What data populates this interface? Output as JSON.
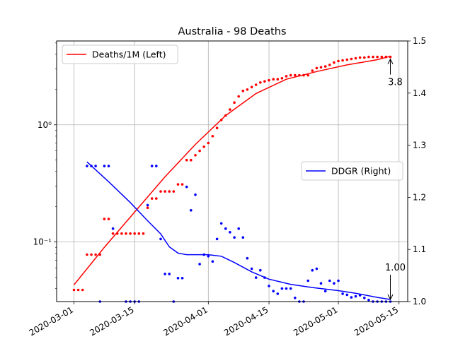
{
  "chart_data": {
    "type": "line",
    "title": "Australia - 98 Deaths",
    "xlabel": "",
    "ylabel_left": "",
    "ylabel_right": "",
    "grid": true,
    "x_axis": {
      "ticks": [
        "2020-03-01",
        "2020-03-15",
        "2020-04-01",
        "2020-04-15",
        "2020-05-01",
        "2020-05-15"
      ]
    },
    "y_left": {
      "scale": "log",
      "ylim": [
        0.031,
        5.2
      ],
      "ticks": [
        {
          "value": 0.1,
          "label": "10⁻¹"
        },
        {
          "value": 1,
          "label": "10⁰"
        }
      ]
    },
    "y_right": {
      "scale": "linear",
      "ylim": [
        1.0,
        1.5
      ],
      "ticks": [
        "1.0",
        "1.1",
        "1.2",
        "1.3",
        "1.4",
        "1.5"
      ]
    },
    "legends": [
      {
        "label": "Deaths/1M (Left)",
        "color": "#ff0000",
        "position": "upper-left"
      },
      {
        "label": "DDGR (Right)",
        "color": "#0000ff",
        "position": "center-right"
      }
    ],
    "series": [
      {
        "name": "Deaths/1M (Left)",
        "axis": "left",
        "color": "#ff0000",
        "fit_line": [
          [
            "2020-03-01",
            0.043
          ],
          [
            "2020-03-08",
            0.09
          ],
          [
            "2020-03-15",
            0.18
          ],
          [
            "2020-03-22",
            0.36
          ],
          [
            "2020-03-29",
            0.68
          ],
          [
            "2020-04-05",
            1.2
          ],
          [
            "2020-04-12",
            1.85
          ],
          [
            "2020-04-19",
            2.45
          ],
          [
            "2020-04-26",
            2.85
          ],
          [
            "2020-05-03",
            3.25
          ],
          [
            "2020-05-10",
            3.6
          ],
          [
            "2020-05-13",
            3.85
          ]
        ],
        "points": [
          [
            "2020-03-01",
            0.039
          ],
          [
            "2020-03-02",
            0.039
          ],
          [
            "2020-03-03",
            0.039
          ],
          [
            "2020-03-04",
            0.078
          ],
          [
            "2020-03-05",
            0.078
          ],
          [
            "2020-03-06",
            0.078
          ],
          [
            "2020-03-07",
            0.078
          ],
          [
            "2020-03-08",
            0.157
          ],
          [
            "2020-03-09",
            0.157
          ],
          [
            "2020-03-10",
            0.118
          ],
          [
            "2020-03-11",
            0.118
          ],
          [
            "2020-03-12",
            0.118
          ],
          [
            "2020-03-13",
            0.118
          ],
          [
            "2020-03-14",
            0.118
          ],
          [
            "2020-03-15",
            0.118
          ],
          [
            "2020-03-16",
            0.118
          ],
          [
            "2020-03-17",
            0.118
          ],
          [
            "2020-03-18",
            0.196
          ],
          [
            "2020-03-19",
            0.235
          ],
          [
            "2020-03-20",
            0.235
          ],
          [
            "2020-03-21",
            0.27
          ],
          [
            "2020-03-22",
            0.27
          ],
          [
            "2020-03-23",
            0.27
          ],
          [
            "2020-03-24",
            0.27
          ],
          [
            "2020-03-25",
            0.31
          ],
          [
            "2020-03-26",
            0.31
          ],
          [
            "2020-03-27",
            0.5
          ],
          [
            "2020-03-28",
            0.5
          ],
          [
            "2020-03-29",
            0.55
          ],
          [
            "2020-03-30",
            0.6
          ],
          [
            "2020-03-31",
            0.65
          ],
          [
            "2020-04-01",
            0.7
          ],
          [
            "2020-04-02",
            0.8
          ],
          [
            "2020-04-03",
            0.94
          ],
          [
            "2020-04-04",
            1.1
          ],
          [
            "2020-04-05",
            1.2
          ],
          [
            "2020-04-06",
            1.35
          ],
          [
            "2020-04-07",
            1.55
          ],
          [
            "2020-04-08",
            1.75
          ],
          [
            "2020-04-09",
            1.95
          ],
          [
            "2020-04-10",
            2.0
          ],
          [
            "2020-04-11",
            2.1
          ],
          [
            "2020-04-12",
            2.2
          ],
          [
            "2020-04-13",
            2.3
          ],
          [
            "2020-04-14",
            2.35
          ],
          [
            "2020-04-15",
            2.4
          ],
          [
            "2020-04-16",
            2.45
          ],
          [
            "2020-04-17",
            2.45
          ],
          [
            "2020-04-18",
            2.5
          ],
          [
            "2020-04-19",
            2.6
          ],
          [
            "2020-04-20",
            2.65
          ],
          [
            "2020-04-21",
            2.65
          ],
          [
            "2020-04-22",
            2.65
          ],
          [
            "2020-04-23",
            2.65
          ],
          [
            "2020-04-24",
            2.65
          ],
          [
            "2020-04-25",
            2.9
          ],
          [
            "2020-04-26",
            3.05
          ],
          [
            "2020-04-27",
            3.1
          ],
          [
            "2020-04-28",
            3.15
          ],
          [
            "2020-04-29",
            3.25
          ],
          [
            "2020-04-30",
            3.4
          ],
          [
            "2020-05-01",
            3.5
          ],
          [
            "2020-05-02",
            3.55
          ],
          [
            "2020-05-03",
            3.6
          ],
          [
            "2020-05-04",
            3.65
          ],
          [
            "2020-05-05",
            3.7
          ],
          [
            "2020-05-06",
            3.75
          ],
          [
            "2020-05-07",
            3.75
          ],
          [
            "2020-05-08",
            3.8
          ],
          [
            "2020-05-09",
            3.8
          ],
          [
            "2020-05-10",
            3.8
          ],
          [
            "2020-05-11",
            3.8
          ],
          [
            "2020-05-12",
            3.8
          ],
          [
            "2020-05-13",
            3.8
          ]
        ]
      },
      {
        "name": "DDGR (Right)",
        "axis": "right",
        "color": "#0000ff",
        "fit_line": [
          [
            "2020-03-04",
            1.268
          ],
          [
            "2020-03-09",
            1.23
          ],
          [
            "2020-03-14",
            1.19
          ],
          [
            "2020-03-18",
            1.155
          ],
          [
            "2020-03-21",
            1.13
          ],
          [
            "2020-03-23",
            1.105
          ],
          [
            "2020-03-25",
            1.093
          ],
          [
            "2020-03-27",
            1.09
          ],
          [
            "2020-04-01",
            1.09
          ],
          [
            "2020-04-04",
            1.087
          ],
          [
            "2020-04-07",
            1.075
          ],
          [
            "2020-04-11",
            1.057
          ],
          [
            "2020-04-15",
            1.043
          ],
          [
            "2020-04-20",
            1.033
          ],
          [
            "2020-04-25",
            1.027
          ],
          [
            "2020-05-01",
            1.021
          ],
          [
            "2020-05-05",
            1.016
          ],
          [
            "2020-05-10",
            1.008
          ],
          [
            "2020-05-13",
            1.004
          ]
        ],
        "points": [
          [
            "2020-03-04",
            1.26
          ],
          [
            "2020-03-05",
            1.26
          ],
          [
            "2020-03-06",
            1.26
          ],
          [
            "2020-03-07",
            1.0
          ],
          [
            "2020-03-08",
            1.26
          ],
          [
            "2020-03-09",
            1.26
          ],
          [
            "2020-03-10",
            1.14
          ],
          [
            "2020-03-13",
            1.0
          ],
          [
            "2020-03-14",
            1.0
          ],
          [
            "2020-03-15",
            1.0
          ],
          [
            "2020-03-16",
            1.0
          ],
          [
            "2020-03-18",
            1.185
          ],
          [
            "2020-03-19",
            1.26
          ],
          [
            "2020-03-20",
            1.26
          ],
          [
            "2020-03-21",
            1.12
          ],
          [
            "2020-03-22",
            1.053
          ],
          [
            "2020-03-23",
            1.053
          ],
          [
            "2020-03-24",
            1.0
          ],
          [
            "2020-03-25",
            1.045
          ],
          [
            "2020-03-26",
            1.045
          ],
          [
            "2020-03-27",
            1.22
          ],
          [
            "2020-03-28",
            1.175
          ],
          [
            "2020-03-29",
            1.205
          ],
          [
            "2020-03-30",
            1.072
          ],
          [
            "2020-03-31",
            1.09
          ],
          [
            "2020-04-01",
            1.087
          ],
          [
            "2020-04-02",
            1.077
          ],
          [
            "2020-04-03",
            1.12
          ],
          [
            "2020-04-04",
            1.15
          ],
          [
            "2020-04-05",
            1.14
          ],
          [
            "2020-04-06",
            1.133
          ],
          [
            "2020-04-07",
            1.123
          ],
          [
            "2020-04-08",
            1.14
          ],
          [
            "2020-04-09",
            1.123
          ],
          [
            "2020-04-10",
            1.083
          ],
          [
            "2020-04-11",
            1.063
          ],
          [
            "2020-04-12",
            1.046
          ],
          [
            "2020-04-13",
            1.06
          ],
          [
            "2020-04-14",
            1.046
          ],
          [
            "2020-04-15",
            1.03
          ],
          [
            "2020-04-16",
            1.02
          ],
          [
            "2020-04-17",
            1.015
          ],
          [
            "2020-04-18",
            1.025
          ],
          [
            "2020-04-19",
            1.025
          ],
          [
            "2020-04-20",
            1.025
          ],
          [
            "2020-04-21",
            1.007
          ],
          [
            "2020-04-22",
            1.0
          ],
          [
            "2020-04-23",
            1.0
          ],
          [
            "2020-04-24",
            1.04
          ],
          [
            "2020-04-25",
            1.06
          ],
          [
            "2020-04-26",
            1.063
          ],
          [
            "2020-04-27",
            1.035
          ],
          [
            "2020-04-28",
            1.02
          ],
          [
            "2020-04-29",
            1.04
          ],
          [
            "2020-04-30",
            1.035
          ],
          [
            "2020-05-01",
            1.04
          ],
          [
            "2020-05-02",
            1.015
          ],
          [
            "2020-05-03",
            1.013
          ],
          [
            "2020-05-04",
            1.008
          ],
          [
            "2020-05-05",
            1.01
          ],
          [
            "2020-05-06",
            1.012
          ],
          [
            "2020-05-07",
            1.007
          ],
          [
            "2020-05-08",
            1.003
          ],
          [
            "2020-05-09",
            1.0
          ],
          [
            "2020-05-10",
            1.0
          ],
          [
            "2020-05-11",
            1.0
          ],
          [
            "2020-05-12",
            1.0
          ],
          [
            "2020-05-13",
            1.0
          ]
        ]
      }
    ],
    "annotations": [
      {
        "text": "3.8",
        "target_date": "2020-05-13",
        "axis": "left",
        "target_value": 3.8
      },
      {
        "text": "1.00",
        "target_date": "2020-05-13",
        "axis": "right",
        "target_value": 1.0
      }
    ]
  }
}
